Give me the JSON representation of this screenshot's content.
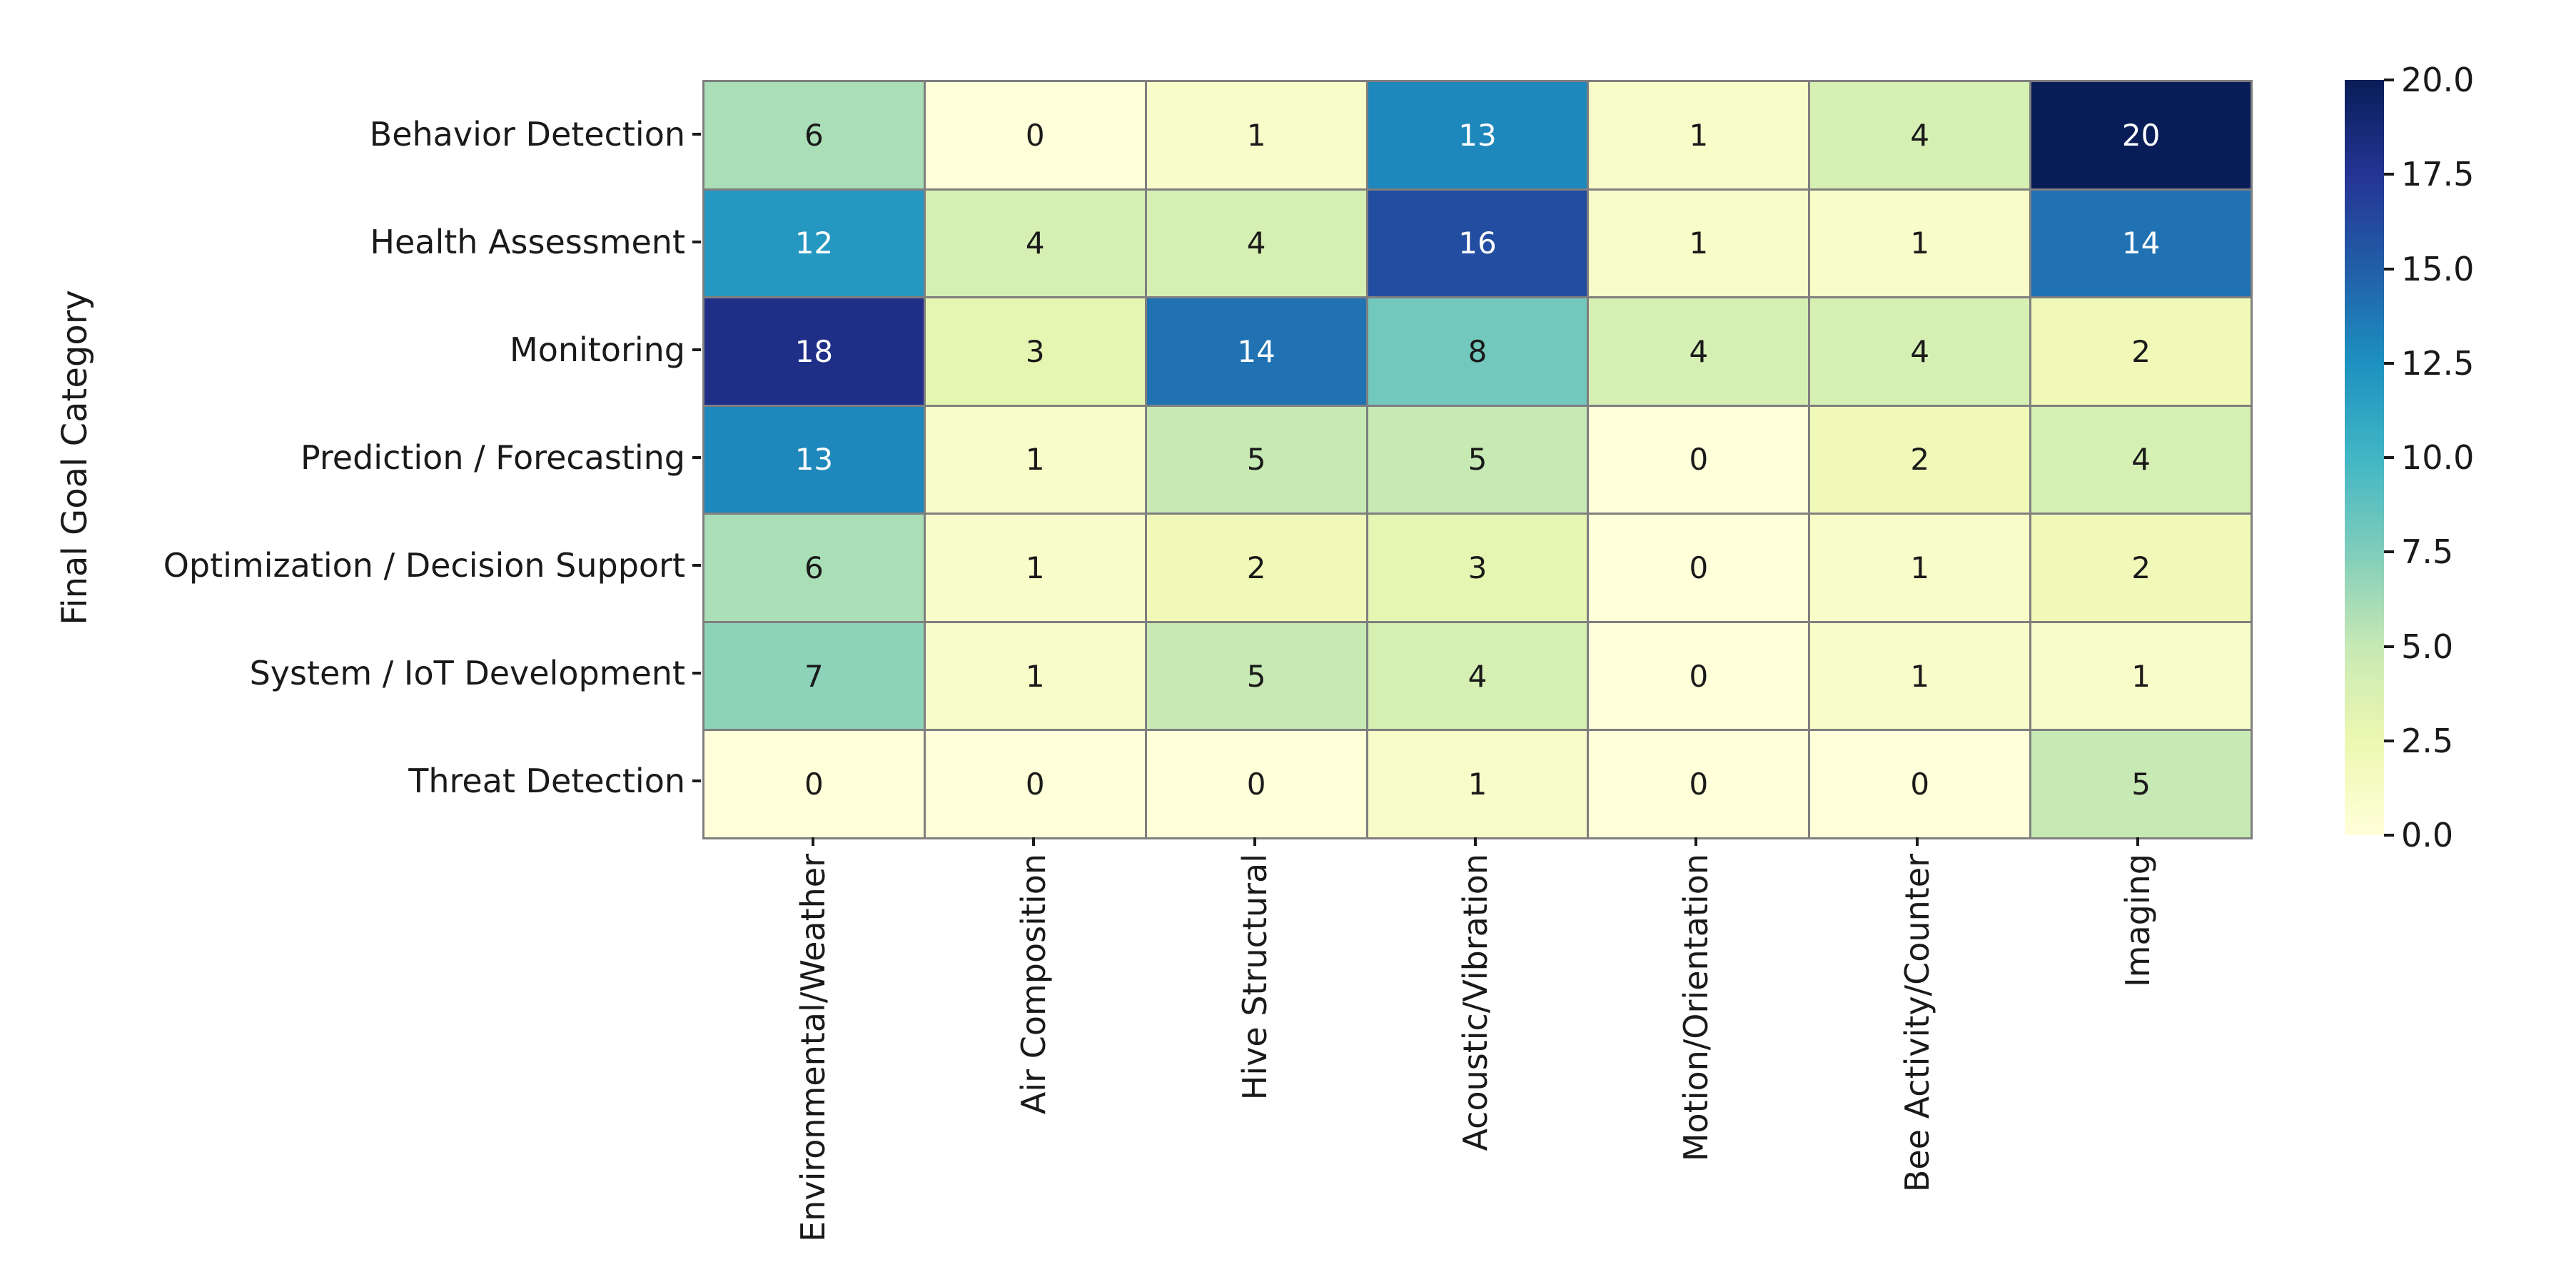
{
  "chart_data": {
    "type": "heatmap",
    "title": "",
    "xlabel": "",
    "ylabel": "Final Goal Category",
    "x_categories": [
      "Environmental/Weather",
      "Air Composition",
      "Hive Structural",
      "Acoustic/Vibration",
      "Motion/Orientation",
      "Bee Activity/Counter",
      "Imaging"
    ],
    "y_categories": [
      "Behavior Detection",
      "Health Assessment",
      "Monitoring",
      "Prediction / Forecasting",
      "Optimization / Decision Support",
      "System / IoT Development",
      "Threat Detection"
    ],
    "values": [
      [
        6,
        0,
        1,
        13,
        1,
        4,
        20
      ],
      [
        12,
        4,
        4,
        16,
        1,
        1,
        14
      ],
      [
        18,
        3,
        14,
        8,
        4,
        4,
        2
      ],
      [
        13,
        1,
        5,
        5,
        0,
        2,
        4
      ],
      [
        6,
        1,
        2,
        3,
        0,
        1,
        2
      ],
      [
        7,
        1,
        5,
        4,
        0,
        1,
        1
      ],
      [
        0,
        0,
        0,
        1,
        0,
        0,
        5
      ]
    ],
    "annotations_shown": true,
    "grid_line_color": "#7f7f7f",
    "legend_position": "right-colorbar",
    "colorbar": {
      "min": 0.0,
      "max": 20.0,
      "tick_labels": [
        "20.0",
        "17.5",
        "15.0",
        "12.5",
        "10.0",
        "7.5",
        "5.0",
        "2.5",
        "0.0"
      ],
      "colormap_name": "YlGnBu",
      "gradient_anchors_bottom_to_top": [
        "#ffffd9",
        "#edf8b1",
        "#c7e9b4",
        "#7fcdbb",
        "#41b6c4",
        "#1d91c0",
        "#225ea8",
        "#253494",
        "#081d58"
      ]
    },
    "value_colors": {
      "0": "#ffffd9",
      "1": "#f8fcc9",
      "2": "#f1f9b9",
      "3": "#e5f5b2",
      "4": "#d6efb3",
      "5": "#c7e9b4",
      "6": "#aadeb7",
      "7": "#8dd3ba",
      "8": "#73c8bd",
      "12": "#2498c1",
      "13": "#1e87bb",
      "14": "#2072b2",
      "16": "#234da0",
      "18": "#1f2f88",
      "20": "#081d58"
    },
    "white_text_values": [
      12,
      13,
      14,
      16,
      18,
      20
    ],
    "text_color": "#1a1a1a",
    "background_color": "#ffffff"
  }
}
